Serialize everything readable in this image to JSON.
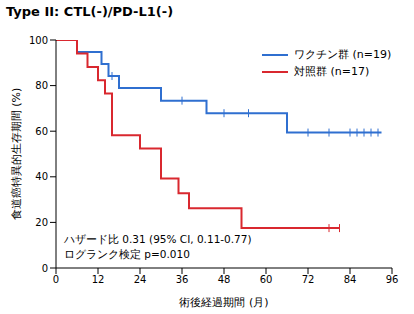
{
  "chart_data": {
    "type": "line",
    "title": "Type II: CTL(-)/PD-L1(-)",
    "x_label": "術後経過期間 (月)",
    "y_label": "食道癌特異的生存期間 (%)",
    "xlim": [
      0,
      96
    ],
    "xticks": [
      0,
      12,
      24,
      36,
      48,
      60,
      72,
      84,
      96
    ],
    "ylim": [
      0,
      100
    ],
    "yticks": [
      0,
      20,
      40,
      60,
      80,
      100
    ],
    "grid": false,
    "legend": "upper right",
    "annotations": [
      "ハザード比 0.31 (95% CI, 0.11-0.77)",
      "ログランク検定 p=0.010"
    ],
    "series": [
      {
        "name": "ワクチン群 (n=19)",
        "color": "#2f6fd0",
        "line_style": "step",
        "x": [
          0,
          6,
          13,
          15,
          18,
          30,
          43,
          66,
          93
        ],
        "values": [
          100,
          94.7,
          89.5,
          84.2,
          78.9,
          73.4,
          67.9,
          59.4,
          59.4
        ],
        "censored_x": [
          16,
          36,
          48,
          55,
          72,
          78,
          84,
          86,
          88,
          90,
          92
        ],
        "censored_values": [
          84.2,
          73.4,
          67.9,
          67.9,
          59.4,
          59.4,
          59.4,
          59.4,
          59.4,
          59.4,
          59.4
        ]
      },
      {
        "name": "対照群 (n=17)",
        "color": "#d9282f",
        "line_style": "step",
        "x": [
          0,
          6,
          9,
          12,
          14,
          16,
          24,
          30,
          35,
          38,
          53,
          81
        ],
        "values": [
          100,
          94.1,
          88.2,
          82.4,
          76.5,
          58.2,
          52.4,
          39.3,
          32.8,
          26.2,
          17.5,
          17.5
        ],
        "censored_x": [
          78,
          81
        ],
        "censored_values": [
          17.5,
          17.5
        ]
      }
    ]
  }
}
